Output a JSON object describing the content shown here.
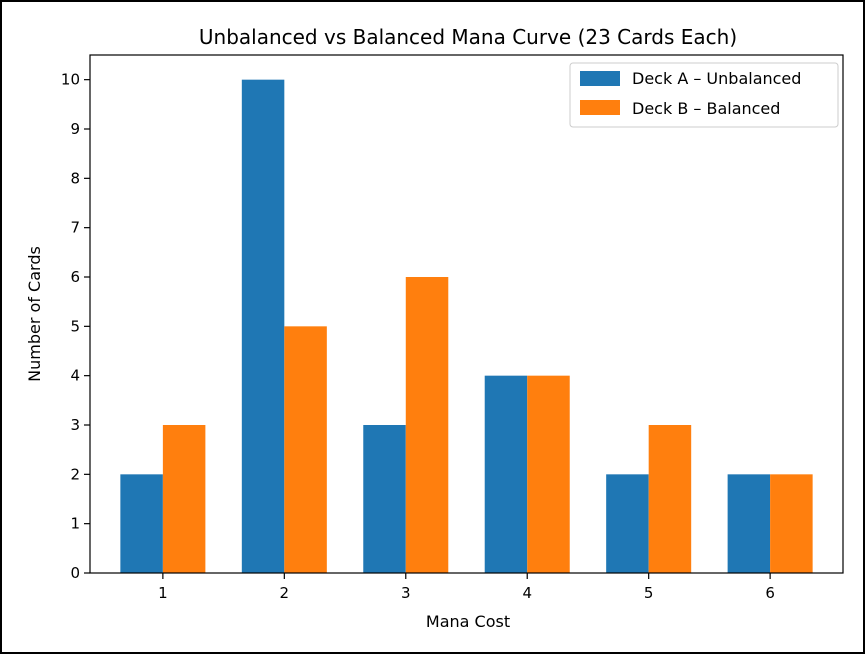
{
  "chart_data": {
    "type": "bar",
    "title": "Unbalanced vs Balanced Mana Curve (23 Cards Each)",
    "xlabel": "Mana Cost",
    "ylabel": "Number of Cards",
    "categories": [
      "1",
      "2",
      "3",
      "4",
      "5",
      "6"
    ],
    "ylim": [
      0,
      10.5
    ],
    "yticks": [
      0,
      1,
      2,
      3,
      4,
      5,
      6,
      7,
      8,
      9,
      10
    ],
    "grid": false,
    "legend_position": "top-right",
    "series": [
      {
        "name": "Deck A – Unbalanced",
        "color": "#1f77b4",
        "values": [
          2,
          10,
          3,
          4,
          2,
          2
        ]
      },
      {
        "name": "Deck B – Balanced",
        "color": "#ff7f0e",
        "values": [
          3,
          5,
          6,
          4,
          3,
          2
        ]
      }
    ]
  }
}
